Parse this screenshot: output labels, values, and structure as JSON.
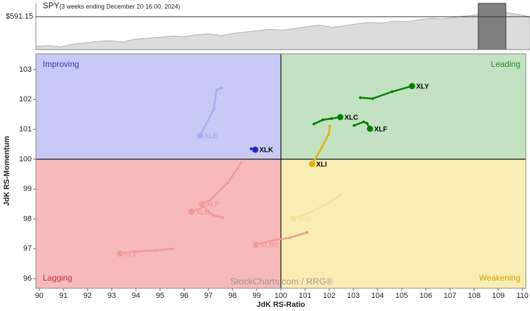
{
  "chart_data": [
    {
      "type": "area",
      "title": "SPY",
      "subtitle": "(3 weeks ending December 20 16:00, 2024)",
      "color": "#dcdcdc",
      "values": [
        482,
        485,
        480,
        490,
        495,
        500,
        503,
        498,
        508,
        512,
        515,
        520,
        518,
        525,
        528,
        522,
        530,
        535,
        540,
        545,
        542,
        548,
        555,
        560,
        552,
        558,
        565,
        570,
        568,
        575,
        572,
        580,
        585,
        583,
        590,
        595,
        600,
        604,
        607,
        600,
        591
      ],
      "ylim": [
        470,
        640
      ],
      "yticks": [
        {
          "value": 591.15,
          "label": "$591.15"
        }
      ]
    },
    {
      "type": "rrg",
      "x_label": "JdK RS-Ratio",
      "y_label": "JdK RS-Momentum",
      "xlim": [
        89.86,
        110.14
      ],
      "ylim": [
        95.68,
        103.53
      ],
      "xticks": [
        90,
        91,
        92,
        93,
        94,
        95,
        96,
        97,
        98,
        99,
        100,
        101,
        102,
        103,
        104,
        105,
        106,
        107,
        108,
        109,
        110
      ],
      "yticks": [
        96,
        97,
        98,
        99,
        100,
        101,
        102,
        103
      ],
      "quadrants": [
        {
          "name": "Improving",
          "color": "#c9c9f5",
          "text_color": "#3434c4"
        },
        {
          "name": "Leading",
          "color": "#c2e2c2",
          "text_color": "#228b22"
        },
        {
          "name": "Lagging",
          "color": "#f6baba",
          "text_color": "#c43030"
        },
        {
          "name": "Weakening",
          "color": "#f8edb2",
          "text_color": "#d4a400"
        }
      ],
      "watermark": "StockCharts.com / RRG®",
      "series": [
        {
          "name": "XLY",
          "color": "#008000",
          "x": [
            103.29,
            103.8,
            104.6,
            105.43
          ],
          "values": [
            102.06,
            102.03,
            102.26,
            102.45
          ]
        },
        {
          "name": "XLC",
          "color": "#008000",
          "x": [
            101.37,
            101.74,
            102.09,
            102.46
          ],
          "values": [
            101.18,
            101.32,
            101.36,
            101.41
          ]
        },
        {
          "name": "XLF",
          "color": "#008000",
          "x": [
            103.03,
            103.43,
            103.57,
            103.69
          ],
          "values": [
            101.13,
            101.25,
            101.2,
            101.02
          ]
        },
        {
          "name": "XLI",
          "color": "#e6b400",
          "x": [
            102.03,
            101.97,
            101.69,
            101.29
          ],
          "values": [
            101.11,
            100.83,
            100.39,
            99.84
          ]
        },
        {
          "name": "XLK",
          "color": "#2828c8",
          "x": [
            98.77,
            98.86,
            98.94
          ],
          "values": [
            100.35,
            100.32,
            100.32
          ]
        },
        {
          "name": "XLE",
          "color": "#a9aef2",
          "x": [
            97.54,
            97.34,
            97.23,
            96.66
          ],
          "values": [
            102.38,
            102.33,
            101.69,
            100.79
          ]
        },
        {
          "name": "XLP",
          "color": "#f09a9a",
          "x": [
            98.34,
            97.8,
            97.09,
            96.74
          ],
          "values": [
            99.86,
            99.21,
            98.64,
            98.5
          ]
        },
        {
          "name": "XLB",
          "color": "#f09a9a",
          "x": [
            97.6,
            97.17,
            96.83,
            96.31
          ],
          "values": [
            98.04,
            98.13,
            98.41,
            98.24
          ]
        },
        {
          "name": "XLV",
          "color": "#f09a9a",
          "x": [
            95.51,
            94.8,
            93.94,
            93.34
          ],
          "values": [
            97.0,
            96.95,
            96.91,
            96.84
          ]
        },
        {
          "name": "XLRE",
          "color": "#f09a9a",
          "x": [
            101.09,
            100.37,
            99.74,
            98.97
          ],
          "values": [
            97.55,
            97.37,
            97.3,
            97.14
          ]
        },
        {
          "name": "XLU",
          "color": "#f4e19a",
          "x": [
            102.46,
            101.8,
            101.09,
            100.51
          ],
          "values": [
            98.8,
            98.45,
            98.18,
            98.01
          ]
        }
      ]
    }
  ]
}
